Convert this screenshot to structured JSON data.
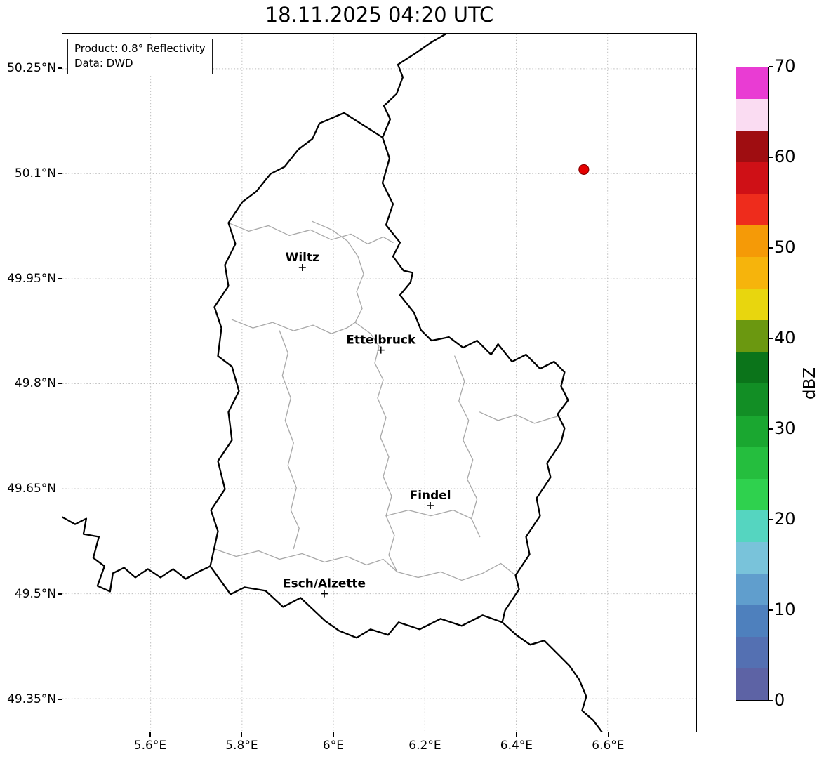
{
  "title": "18.11.2025 04:20 UTC",
  "info_box": {
    "product": "Product: 0.8° Reflectivity",
    "source": "Data: DWD"
  },
  "chart_data": {
    "type": "map",
    "subtype": "weather-radar-reflectivity",
    "region": "Luxembourg",
    "extent": {
      "lon_min": 5.407,
      "lon_max": 6.794,
      "lat_min": 49.303,
      "lat_max": 50.3
    },
    "grid": true,
    "x_ticks": [
      {
        "value": 5.6,
        "label": "5.6°E"
      },
      {
        "value": 5.8,
        "label": "5.8°E"
      },
      {
        "value": 6.0,
        "label": "6°E"
      },
      {
        "value": 6.2,
        "label": "6.2°E"
      },
      {
        "value": 6.4,
        "label": "6.4°E"
      },
      {
        "value": 6.6,
        "label": "6.6°E"
      }
    ],
    "y_ticks": [
      {
        "value": 50.25,
        "label": "50.25°N"
      },
      {
        "value": 50.1,
        "label": "50.1°N"
      },
      {
        "value": 49.95,
        "label": "49.95°N"
      },
      {
        "value": 49.8,
        "label": "49.8°N"
      },
      {
        "value": 49.65,
        "label": "49.65°N"
      },
      {
        "value": 49.5,
        "label": "49.5°N"
      },
      {
        "value": 49.35,
        "label": "49.35°N"
      }
    ],
    "cities": [
      {
        "name": "Wiltz",
        "lon": 5.932,
        "lat": 49.966
      },
      {
        "name": "Ettelbruck",
        "lon": 6.104,
        "lat": 49.848
      },
      {
        "name": "Findel",
        "lon": 6.212,
        "lat": 49.626
      },
      {
        "name": "Esch/Alzette",
        "lon": 5.98,
        "lat": 49.5
      }
    ],
    "radar_site": {
      "lon": 6.548,
      "lat": 50.106,
      "color": "#e60000",
      "edge": "#8b0000"
    },
    "colorbar": {
      "label": "dBZ",
      "min": 0,
      "max": 70,
      "ticks": [
        0,
        10,
        20,
        30,
        40,
        50,
        60,
        70
      ],
      "segment_size": 3.5,
      "colors_bottom_to_top": [
        "#5d63a5",
        "#5470b2",
        "#4e80bd",
        "#609ecd",
        "#79c3da",
        "#55d5c0",
        "#2fd14e",
        "#25be3e",
        "#1aa730",
        "#128e25",
        "#0b741a",
        "#6b9810",
        "#e8d60e",
        "#f6b40c",
        "#f59a07",
        "#ee2c1c",
        "#cf1016",
        "#9f0d11",
        "#fadcf2",
        "#e93cd3"
      ]
    }
  }
}
